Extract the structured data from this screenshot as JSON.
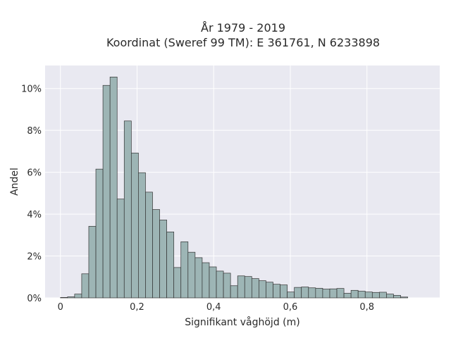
{
  "chart_data": {
    "type": "bar",
    "title_line1": "År 1979 - 2019",
    "title_line2": "Koordinat (Sweref 99 TM): E 361761, N 6233898",
    "xlabel": "Signifikant våghöjd (m)",
    "ylabel": "Andel",
    "xlim": [
      -0.04,
      0.99
    ],
    "ylim": [
      0,
      11.1
    ],
    "x_ticks": [
      0,
      0.2,
      0.4,
      0.6,
      0.8
    ],
    "x_tick_labels": [
      "0",
      "0,2",
      "0,4",
      "0,6",
      "0,8"
    ],
    "y_ticks": [
      0,
      2,
      4,
      6,
      8,
      10
    ],
    "y_tick_labels": [
      "0%",
      "2%",
      "4%",
      "6%",
      "8%",
      "10%"
    ],
    "bin_start": 0.0,
    "bin_width": 0.0185,
    "values": [
      0.02,
      0.05,
      0.18,
      1.15,
      3.42,
      6.15,
      10.15,
      10.55,
      4.72,
      8.45,
      6.92,
      5.98,
      5.05,
      4.22,
      3.72,
      3.15,
      1.45,
      2.68,
      2.18,
      1.92,
      1.68,
      1.48,
      1.28,
      1.18,
      0.58,
      1.05,
      1.02,
      0.92,
      0.82,
      0.75,
      0.65,
      0.62,
      0.28,
      0.5,
      0.52,
      0.48,
      0.46,
      0.42,
      0.43,
      0.45,
      0.22,
      0.36,
      0.32,
      0.28,
      0.26,
      0.27,
      0.18,
      0.12,
      0.04
    ],
    "grid": true,
    "legend": "none",
    "bar_color": "#9db5b5",
    "edge_color": "#333333",
    "plot_background": "#e9e9f1"
  }
}
